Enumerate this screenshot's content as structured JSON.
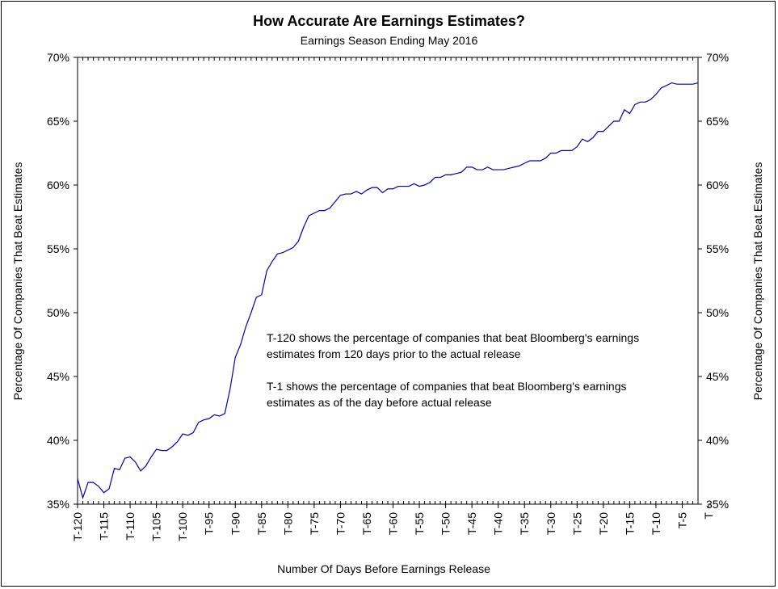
{
  "header": {
    "title": "How Accurate Are Earnings Estimates?",
    "subtitle": "Earnings Season Ending May 2016"
  },
  "annotations": {
    "note1_line1": "T-120 shows the percentage of companies that beat Bloomberg's earnings",
    "note1_line2": "estimates from 120 days prior to the actual release",
    "note2_line1": "T-1 shows the percentage of companies that beat Bloomberg's earnings",
    "note2_line2": "estimates as of the day before actual release"
  },
  "colors": {
    "line": "#0000b0",
    "axis": "#000000"
  },
  "chart_data": {
    "type": "line",
    "title": "How Accurate Are Earnings Estimates?",
    "subtitle": "Earnings Season Ending May 2016",
    "xlabel": "Number Of Days Before Earnings Release",
    "ylabel": "Percentage Of Companies That Beat Estimates",
    "ylabel_right": "Percentage Of Companies That Beat Estimates",
    "ylim": [
      35,
      70
    ],
    "yticks": [
      "35%",
      "40%",
      "45%",
      "50%",
      "55%",
      "60%",
      "65%",
      "70%"
    ],
    "xticks": [
      "T-120",
      "T-115",
      "T-110",
      "T-105",
      "T-100",
      "T-95",
      "T-90",
      "T-85",
      "T-80",
      "T-75",
      "T-70",
      "T-65",
      "T-60",
      "T-55",
      "T-50",
      "T-45",
      "T-40",
      "T-35",
      "T-30",
      "T-25",
      "T-20",
      "T-15",
      "T-10",
      "T-5",
      "T"
    ],
    "grid": false,
    "series": [
      {
        "values": [
          37.0,
          35.5,
          36.7,
          36.7,
          36.4,
          35.9,
          36.2,
          37.8,
          37.7,
          38.6,
          38.7,
          38.3,
          37.6,
          38.0,
          38.7,
          39.3,
          39.2,
          39.2,
          39.5,
          39.9,
          40.5,
          40.4,
          40.6,
          41.4,
          41.6,
          41.7,
          42.0,
          41.9,
          42.1,
          44.0,
          46.5,
          47.5,
          48.9,
          50.0,
          51.2,
          51.4,
          53.3,
          54.0,
          54.6,
          54.7,
          54.9,
          55.1,
          55.6,
          56.7,
          57.6,
          57.8,
          58.0,
          58.0,
          58.2,
          58.7,
          59.2,
          59.3,
          59.3,
          59.5,
          59.3,
          59.6,
          59.8,
          59.8,
          59.4,
          59.7,
          59.7,
          59.9,
          59.9,
          59.9,
          60.1,
          59.9,
          60.0,
          60.2,
          60.6,
          60.6,
          60.8,
          60.8,
          60.9,
          61.0,
          61.4,
          61.4,
          61.2,
          61.2,
          61.4,
          61.2,
          61.2,
          61.2,
          61.3,
          61.4,
          61.5,
          61.7,
          61.9,
          61.9,
          61.9,
          62.1,
          62.5,
          62.5,
          62.7,
          62.7,
          62.7,
          63.0,
          63.6,
          63.4,
          63.7,
          64.2,
          64.2,
          64.6,
          65.0,
          65.0,
          65.9,
          65.6,
          66.3,
          66.5,
          66.5,
          66.7,
          67.1,
          67.6,
          67.8,
          68.0,
          67.9,
          67.9,
          67.9,
          67.9,
          68.0
        ]
      }
    ]
  }
}
